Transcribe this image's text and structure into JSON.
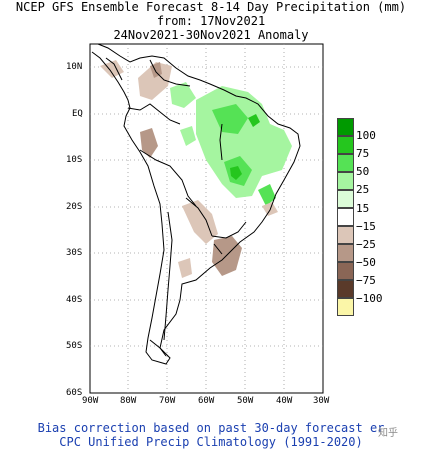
{
  "header": {
    "line1": "NCEP GFS Ensemble Forecast 8-14 Day Precipitation (mm)",
    "line2": "from: 17Nov2021",
    "line3": "24Nov2021-30Nov2021 Anomaly"
  },
  "axes": {
    "lat_labels": [
      "10N",
      "EQ",
      "10S",
      "20S",
      "30S",
      "40S",
      "50S",
      "60S"
    ],
    "lon_labels": [
      "90W",
      "80W",
      "70W",
      "60W",
      "50W",
      "40W",
      "30W"
    ]
  },
  "legend": {
    "labels": [
      "100",
      "75",
      "50",
      "25",
      "15",
      "−15",
      "−25",
      "−50",
      "−75",
      "−100"
    ],
    "colors": [
      "#009a00",
      "#25c61e",
      "#55e255",
      "#a5f5a0",
      "#dcfcd8",
      "#ffffff",
      "#dcc6b8",
      "#b69888",
      "#8a6656",
      "#5a3a2a",
      "#fbf6a8"
    ]
  },
  "footer": {
    "line1": "Bias correction based on past 30-day forecast er",
    "line2": "CPC Unified Precip Climatology (1991-2020)"
  },
  "watermark": "知乎"
}
